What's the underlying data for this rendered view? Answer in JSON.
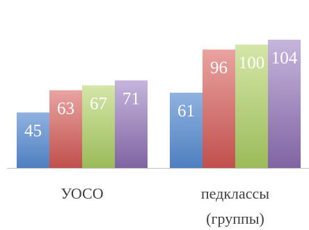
{
  "chart_data": {
    "type": "bar",
    "categories": [
      "УОСО",
      "педклассы (группы)"
    ],
    "category_lines": [
      [
        "УОСО"
      ],
      [
        "педклассы",
        "(группы)"
      ]
    ],
    "series": [
      {
        "values": [
          45,
          61
        ],
        "color_top": "#8fb2e0",
        "color_bottom": "#4f7fc0"
      },
      {
        "values": [
          63,
          96
        ],
        "color_top": "#e9a3a0",
        "color_bottom": "#c0504d"
      },
      {
        "values": [
          67,
          100
        ],
        "color_top": "#d4e6a8",
        "color_bottom": "#9bbb59"
      },
      {
        "values": [
          71,
          104
        ],
        "color_top": "#c5b5dc",
        "color_bottom": "#8064a2"
      }
    ],
    "ylim": [
      0,
      110
    ],
    "grid": false,
    "legend": "none",
    "data_label_color": "#ffffff",
    "axis_color": "#bfbfbf"
  }
}
